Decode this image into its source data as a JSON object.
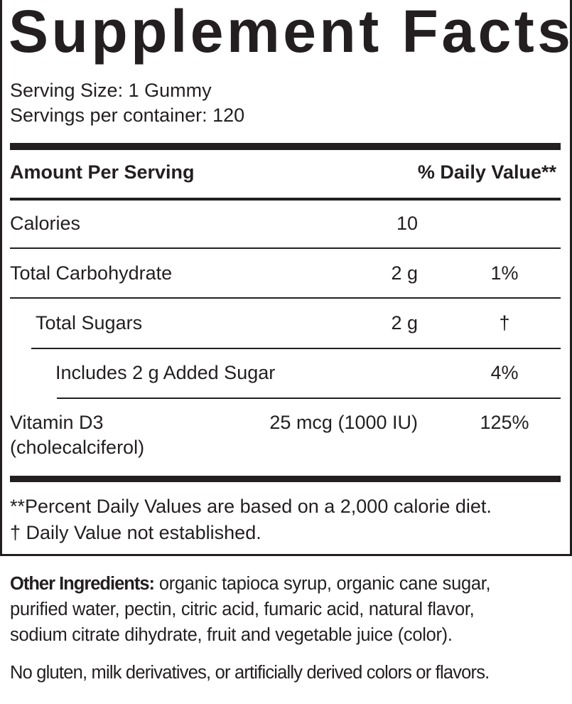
{
  "title": "Supplement Facts",
  "serving_size": "Serving Size: 1 Gummy",
  "servings_per_container": "Servings per container: 120",
  "header": {
    "amount": "Amount Per Serving",
    "daily_value": "% Daily Value**"
  },
  "rows": [
    {
      "name": "Calories",
      "amount": "10",
      "dv": ""
    },
    {
      "name": "Total Carbohydrate",
      "amount": "2 g",
      "dv": "1%"
    },
    {
      "name": "Total Sugars",
      "amount": "2 g",
      "dv": "†"
    },
    {
      "name": "Includes 2 g Added Sugar",
      "amount": "",
      "dv": "4%"
    },
    {
      "name": "Vitamin D3",
      "subname": "(cholecalciferol)",
      "amount": "25 mcg (1000 IU)",
      "dv": "125%"
    }
  ],
  "footnotes": [
    "**Percent Daily Values are based on a 2,000 calorie diet.",
    "†  Daily Value not established."
  ],
  "other_ingredients": {
    "label": "Other Ingredients:",
    "line1": " organic tapioca syrup, organic cane sugar,",
    "line2": "purified water, pectin, citric acid, fumaric acid, natural flavor,",
    "line3": "sodium citrate dihydrate, fruit and vegetable juice (color)."
  },
  "allergen_statement": "No gluten, milk derivatives, or artificially derived colors or flavors."
}
